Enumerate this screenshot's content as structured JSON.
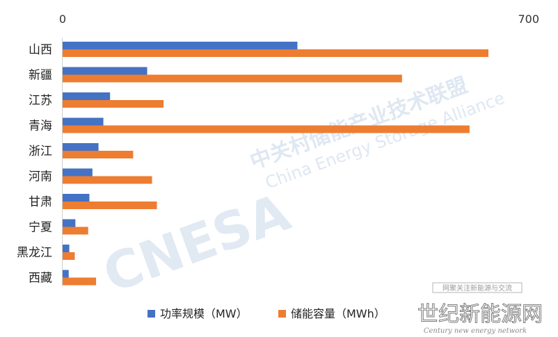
{
  "chart_data": {
    "type": "bar",
    "orientation": "horizontal",
    "title": "",
    "xlabel": "",
    "ylabel": "",
    "categories": [
      "山西",
      "新疆",
      "江苏",
      "青海",
      "浙江",
      "河南",
      "甘肃",
      "宁夏",
      "黑龙江",
      "西藏"
    ],
    "series": [
      {
        "name": "功率规模（MW）",
        "color": "#4472C4",
        "values": [
          386,
          139,
          78,
          67,
          59,
          49,
          44,
          21,
          11,
          10
        ]
      },
      {
        "name": "储能容量（MWh）",
        "color": "#ED7D31",
        "values": [
          700,
          558,
          166,
          669,
          116,
          147,
          155,
          42,
          20,
          55
        ]
      }
    ],
    "xlim": [
      0,
      700
    ],
    "x_tick_labels": [
      "0",
      "700"
    ],
    "grid": false,
    "legend_position": "bottom"
  },
  "watermark": {
    "logo": "CNESA",
    "org_cn": "中关村储能产业技术联盟",
    "org_en": "China Energy Storage Alliance"
  },
  "corner_logo": {
    "tagline": "网聚关注新能源与交流",
    "title": "世纪新能源网",
    "subtitle": "Century new energy network"
  }
}
